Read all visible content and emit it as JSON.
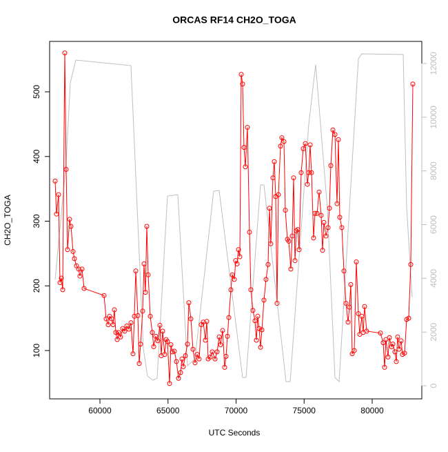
{
  "chart_data": {
    "type": "line",
    "title": "ORCAS RF14 CH2O_TOGA",
    "xlabel": "UTC Seconds",
    "ylabel": "CH2O_TOGA",
    "xlim": [
      56304,
      83646
    ],
    "ylim": [
      25.3,
      577.9
    ],
    "y2lim": [
      -488,
      12822
    ],
    "xticks": [
      60000,
      65000,
      70000,
      75000,
      80000
    ],
    "yticks": [
      100,
      200,
      300,
      400,
      500
    ],
    "y2ticks": [
      0,
      2000,
      4000,
      6000,
      8000,
      10000,
      12000
    ],
    "series": [
      {
        "color": "#ff0000",
        "markers": true,
        "x": [
          56709,
          56810,
          56962,
          57063,
          57164,
          57265,
          57418,
          57519,
          57620,
          57772,
          57873,
          58025,
          58126,
          58278,
          58430,
          58532,
          58683,
          58835,
          60304,
          60456,
          60608,
          60709,
          60861,
          60962,
          61063,
          61164,
          61265,
          61367,
          61519,
          61671,
          61823,
          61975,
          62126,
          62278,
          62430,
          62531,
          62633,
          62785,
          62886,
          62987,
          63139,
          63240,
          63342,
          63443,
          63544,
          63696,
          63848,
          63949,
          64101,
          64253,
          64405,
          64506,
          64607,
          64759,
          64860,
          64962,
          65114,
          65215,
          65316,
          65468,
          65620,
          65772,
          65924,
          66025,
          66126,
          66278,
          66430,
          66531,
          66683,
          66835,
          66987,
          67139,
          67290,
          67442,
          67594,
          67746,
          67848,
          67949,
          68101,
          68253,
          68455,
          68607,
          68759,
          68860,
          69012,
          69164,
          69266,
          69367,
          69468,
          69620,
          69721,
          69873,
          69974,
          70075,
          70177,
          70278,
          70379,
          70480,
          70582,
          70683,
          70835,
          70987,
          71088,
          71240,
          71392,
          71493,
          71594,
          71696,
          71797,
          71898,
          72050,
          72202,
          72354,
          72455,
          72556,
          72708,
          72809,
          72911,
          73012,
          73113,
          73265,
          73366,
          73518,
          73620,
          73772,
          73873,
          74025,
          74126,
          74227,
          74329,
          74430,
          74531,
          74632,
          74784,
          74936,
          75088,
          75240,
          75341,
          75442,
          75544,
          75696,
          75797,
          75949,
          76101,
          76253,
          76354,
          76455,
          76607,
          76759,
          76860,
          76962,
          77114,
          77266,
          77418,
          77519,
          77620,
          77772,
          77924,
          78076,
          78228,
          78329,
          78430,
          78531,
          78683,
          78835,
          78987,
          79088,
          79240,
          79342,
          79443,
          79595,
          80608,
          80810,
          80911,
          81013,
          81164,
          81266,
          81418,
          81519,
          81671,
          81772,
          81873,
          81975,
          82126,
          82228,
          82380,
          82531,
          82683,
          82835,
          82987
        ],
        "values": [
          362,
          311,
          341,
          205,
          212,
          194,
          560,
          380,
          256,
          303,
          292,
          253,
          242,
          231,
          226,
          215,
          226,
          196,
          185,
          149,
          140,
          153,
          149,
          140,
          163,
          128,
          117,
          128,
          121,
          134,
          130,
          138,
          133,
          143,
          95,
          153,
          223,
          154,
          80,
          110,
          161,
          234,
          190,
          292,
          217,
          153,
          128,
          106,
          122,
          115,
          139,
          92,
          130,
          94,
          117,
          114,
          49,
          109,
          98,
          99,
          83,
          57,
          66,
          87,
          75,
          92,
          110,
          174,
          149,
          102,
          81,
          94,
          87,
          140,
          144,
          116,
          145,
          87,
          90,
          98,
          87,
          98,
          121,
          109,
          131,
          74,
          91,
          122,
          151,
          194,
          217,
          210,
          239,
          234,
          256,
          245,
          527,
          512,
          414,
          384,
          445,
          283,
          194,
          162,
          146,
          116,
          153,
          134,
          105,
          132,
          178,
          210,
          233,
          320,
          265,
          367,
          392,
          338,
          173,
          341,
          416,
          429,
          423,
          317,
          272,
          269,
          226,
          277,
          367,
          239,
          285,
          287,
          256,
          375,
          412,
          420,
          357,
          375,
          418,
          375,
          274,
          312,
          312,
          345,
          309,
          255,
          298,
          277,
          290,
          320,
          386,
          441,
          434,
          327,
          426,
          306,
          290,
          223,
          173,
          144,
          167,
          202,
          95,
          100,
          237,
          157,
          125,
          153,
          128,
          168,
          130,
          127,
          112,
          74,
          117,
          90,
          120,
          106,
          110,
          98,
          83,
          121,
          102,
          115,
          94,
          96,
          148,
          150,
          233,
          512
        ]
      },
      {
        "color": "#bebebe",
        "axis": "y2",
        "markers": false,
        "x": [
          56709,
          57519,
          57823,
          58228,
          62278,
          63190,
          63494,
          63899,
          64203,
          64962,
          65721,
          66430,
          66987,
          68354,
          68759,
          70480,
          70734,
          71797,
          72050,
          73671,
          73974,
          75341,
          75848,
          76709,
          77266,
          77570,
          78987,
          79240,
          82278,
          82531,
          82936
        ],
        "values": [
          3957,
          8325,
          11280,
          12127,
          11922,
          1387,
          360,
          206,
          283,
          7066,
          7117,
          745,
          1002,
          7246,
          7271,
          308,
          308,
          7477,
          7477,
          154,
          154,
          9738,
          11960,
          6600,
          308,
          154,
          12179,
          12359,
          12333,
          6655,
          3314
        ]
      }
    ]
  }
}
